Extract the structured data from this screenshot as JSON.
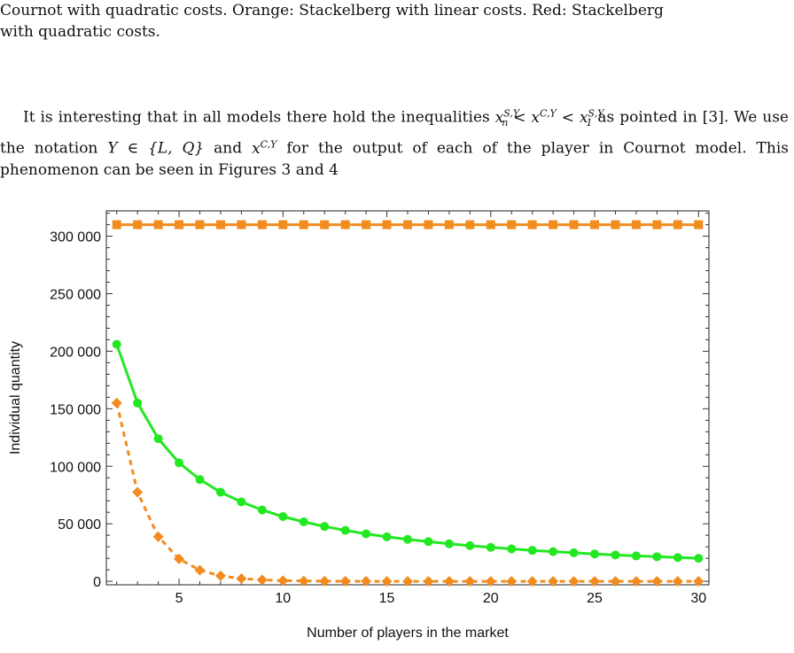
{
  "caption": {
    "line1": "Cournot with quadratic costs. Orange: Stackelberg with linear costs. Red: Stackelberg",
    "line2": "with quadratic costs."
  },
  "paragraph": {
    "part1": "It is interesting that in all models there hold the inequalities ",
    "part2": " as pointed in [3]. We use the notation ",
    "part3": " and ",
    "part4": " for the output of each of the player in Cournot model. This phenomenon can be seen in Figures 3 and 4"
  },
  "math": {
    "ineq_x1": "x",
    "ineq_sub1": "n",
    "ineq_sup1": "S,Y",
    "ineq_lt1": " < ",
    "ineq_x2": "x",
    "ineq_sup2": "C,Y",
    "ineq_lt2": " < ",
    "ineq_x3": "x",
    "ineq_sub3": "1",
    "ineq_sup3": "S,Y",
    "set_expr": "Y ∈ {L, Q}",
    "xcy_x": "x",
    "xcy_sup": "C,Y"
  },
  "chart_data": {
    "type": "line",
    "xlabel": "Number of players in the market",
    "ylabel": "Individual quantity",
    "xlim": [
      1.5,
      30.5
    ],
    "ylim": [
      -3000,
      322000
    ],
    "xticks": [
      5,
      10,
      15,
      20,
      25,
      30
    ],
    "yticks": [
      0,
      50000,
      100000,
      150000,
      200000,
      250000,
      300000
    ],
    "ytick_labels": [
      "0",
      "50 000",
      "100 000",
      "150 000",
      "200 000",
      "250 000",
      "300 000"
    ],
    "x": [
      2,
      3,
      4,
      5,
      6,
      7,
      8,
      9,
      10,
      11,
      12,
      13,
      14,
      15,
      16,
      17,
      18,
      19,
      20,
      21,
      22,
      23,
      24,
      25,
      26,
      27,
      28,
      29,
      30
    ],
    "series": [
      {
        "color": "#f28c1f",
        "marker": "square",
        "style": "solid",
        "values": [
          310000,
          310000,
          310000,
          310000,
          310000,
          310000,
          310000,
          310000,
          310000,
          310000,
          310000,
          310000,
          310000,
          310000,
          310000,
          310000,
          310000,
          310000,
          310000,
          310000,
          310000,
          310000,
          310000,
          310000,
          310000,
          310000,
          310000,
          310000,
          310000
        ]
      },
      {
        "color": "#22e822",
        "marker": "circle",
        "style": "solid",
        "values": [
          206000,
          155000,
          124000,
          103000,
          88500,
          77500,
          69000,
          62000,
          56300,
          51700,
          47700,
          44300,
          41300,
          38700,
          36500,
          34500,
          32600,
          31000,
          29500,
          28200,
          26900,
          25800,
          24800,
          23800,
          22900,
          22100,
          21400,
          20700,
          20000
        ]
      },
      {
        "color": "#f28c1f",
        "marker": "diamond",
        "style": "dashed",
        "values": [
          155000,
          77500,
          38800,
          19400,
          9700,
          4800,
          2400,
          1200,
          600,
          300,
          150,
          80,
          40,
          20,
          10,
          5,
          3,
          1,
          0,
          0,
          0,
          0,
          0,
          0,
          0,
          0,
          0,
          0,
          0
        ]
      }
    ]
  }
}
